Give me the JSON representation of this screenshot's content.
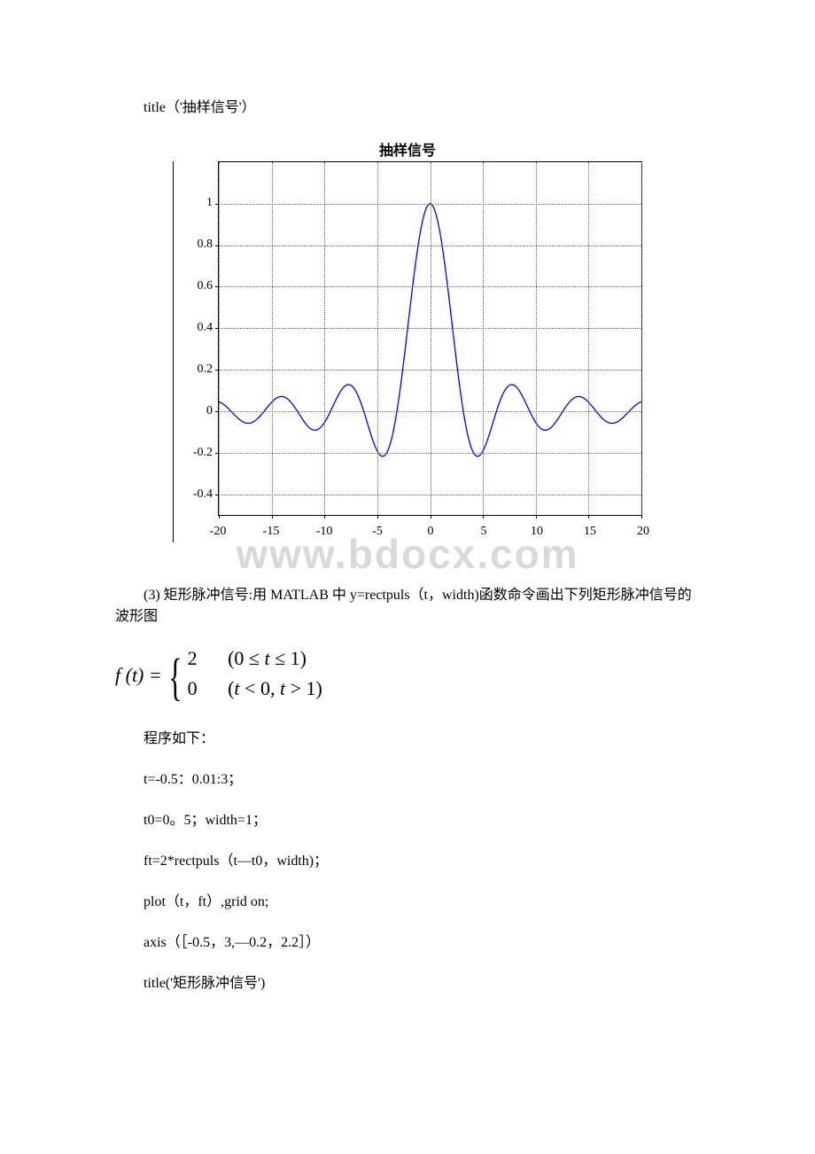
{
  "code_title_line": "title（'抽样信号'）",
  "chart": {
    "title": "抽样信号",
    "type": "line",
    "line_color": "#0000ff",
    "background_color": "#ffffff",
    "grid_color": "#666666",
    "axis_color": "#000000",
    "title_fontsize": 16,
    "tick_fontsize": 14,
    "xlim": [
      -20,
      20
    ],
    "ylim": [
      -0.5,
      1.2
    ],
    "xticks": [
      -20,
      -15,
      -10,
      -5,
      0,
      5,
      10,
      15,
      20
    ],
    "yticks": [
      -0.4,
      -0.2,
      0,
      0.2,
      0.4,
      0.6,
      0.8,
      1
    ],
    "watermark_text": "www.bdocx.com"
  },
  "section3": {
    "prompt": "(3) 矩形脉冲信号:用 MATLAB 中 y=rectpuls（t，width)函数命令画出下列矩形脉冲信号的波形图",
    "formula": {
      "lhs": "f(t) =",
      "case1_val": "2",
      "case1_cond": "(0 ≤ t ≤ 1)",
      "case2_val": "0",
      "case2_cond": "(t < 0, t > 1)"
    },
    "program_label": "程序如下：",
    "lines": [
      "t=-0.5：0.01:3；",
      "t0=0。5；width=1；",
      "ft=2*rectpuls（t—t0，width)；",
      "plot（t，ft）,grid on;",
      "axis（［-0.5，3,—0.2，2.2］）",
      "title('矩形脉冲信号')"
    ]
  }
}
